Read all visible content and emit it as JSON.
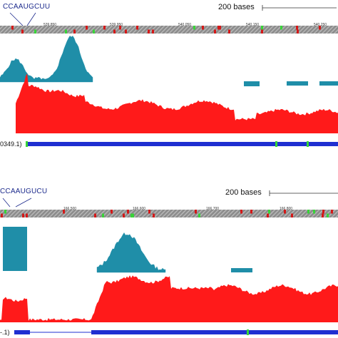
{
  "panels": [
    {
      "motif": "CCAAUGCUU",
      "scale_label": "200 bases",
      "accession": "0349.1)",
      "ticks": [
        "539,850",
        "539,950",
        "540,050",
        "540,150",
        "540,250"
      ],
      "blue_peaks": [
        {
          "start": 0.0,
          "end": 0.28,
          "level": 0.35
        },
        {
          "start": 0.16,
          "end": 0.27,
          "level": 0.85
        }
      ]
    },
    {
      "motif": "CCAAUGUCU",
      "scale_label": "200 bases",
      "accession": "-.1)",
      "ticks": [
        "166,500",
        "166,600",
        "166,700",
        "166,800"
      ],
      "blue_peaks": []
    }
  ],
  "colors": {
    "conservation_blue": "#1f8ea8",
    "coverage_red": "#ff1a1a",
    "gene_blue": "#1f2fd1",
    "ruler_gray": "#8c8c8c",
    "mark_red": "#d41818",
    "mark_green": "#38d438"
  }
}
